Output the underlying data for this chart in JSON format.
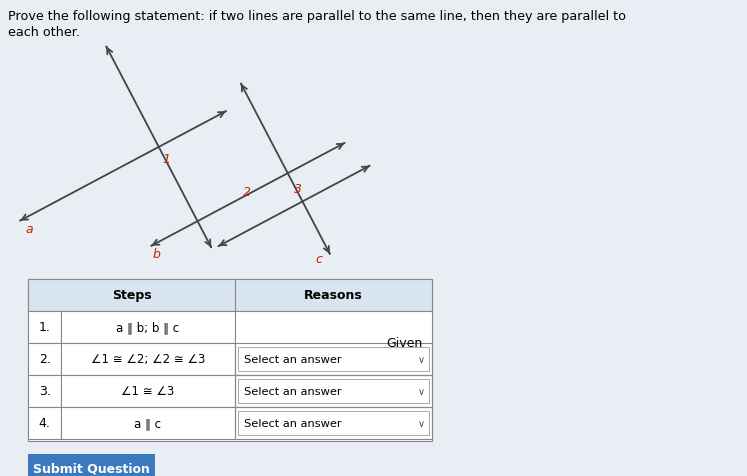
{
  "title_line1": "Prove the following statement: if two lines are parallel to the same line, then they are parallel to",
  "title_line2": "each other.",
  "bg_color": "#e8eef4",
  "submit_btn_color": "#3a7abf",
  "submit_btn_text": "Submit Question",
  "line_color": "#444444",
  "angle_label_color": "#cc2200",
  "line_label_color": "#cc2200"
}
